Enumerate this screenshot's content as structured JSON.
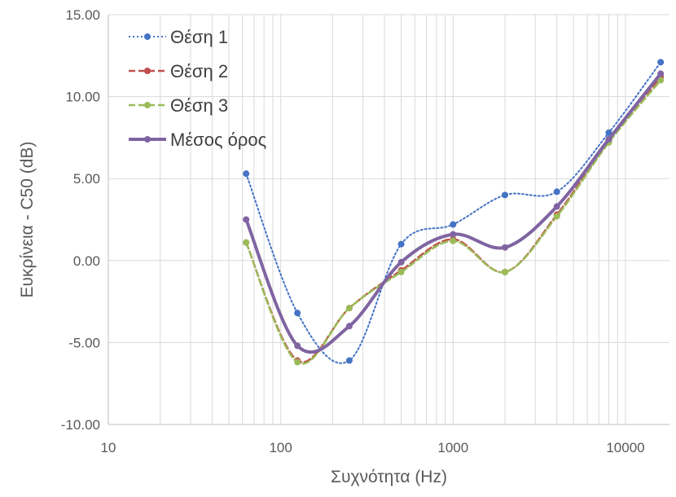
{
  "chart_data": {
    "type": "line",
    "x_scale": "log",
    "xlabel": "Συχνότητα (Hz)",
    "ylabel": "Ευκρίνεια - C50 (dB)",
    "xlim": [
      10,
      18000
    ],
    "ylim": [
      -10,
      15
    ],
    "x_ticks": [
      10,
      100,
      1000,
      10000
    ],
    "x_tick_labels": [
      "10",
      "100",
      "1000",
      "10000"
    ],
    "y_ticks": [
      -10,
      -5,
      0,
      5,
      10,
      15
    ],
    "y_tick_labels": [
      "-10.00",
      "-5.00",
      "0.00",
      "5.00",
      "10.00",
      "15.00"
    ],
    "grid": true,
    "legend_position": "top-left",
    "x": [
      63,
      125,
      250,
      500,
      1000,
      2000,
      4000,
      8000,
      16000
    ],
    "series": [
      {
        "name": "Θέση 1",
        "color": "#4472C4",
        "style": "dotted",
        "values": [
          5.3,
          -3.2,
          -6.1,
          1.0,
          2.2,
          4.0,
          4.2,
          7.8,
          12.1
        ]
      },
      {
        "name": "Θέση 2",
        "color": "#C0504D",
        "style": "dashed",
        "values": [
          1.1,
          -6.1,
          -2.9,
          -0.6,
          1.3,
          -0.7,
          2.8,
          7.3,
          11.2
        ]
      },
      {
        "name": "Θέση 3",
        "color": "#9BBB59",
        "style": "dashed",
        "values": [
          1.1,
          -6.2,
          -2.9,
          -0.7,
          1.2,
          -0.7,
          2.7,
          7.2,
          11.0
        ]
      },
      {
        "name": "Μέσος όρος",
        "color": "#8064A2",
        "style": "solid",
        "values": [
          2.5,
          -5.2,
          -4.0,
          -0.1,
          1.6,
          0.8,
          3.3,
          7.4,
          11.4
        ]
      }
    ]
  }
}
